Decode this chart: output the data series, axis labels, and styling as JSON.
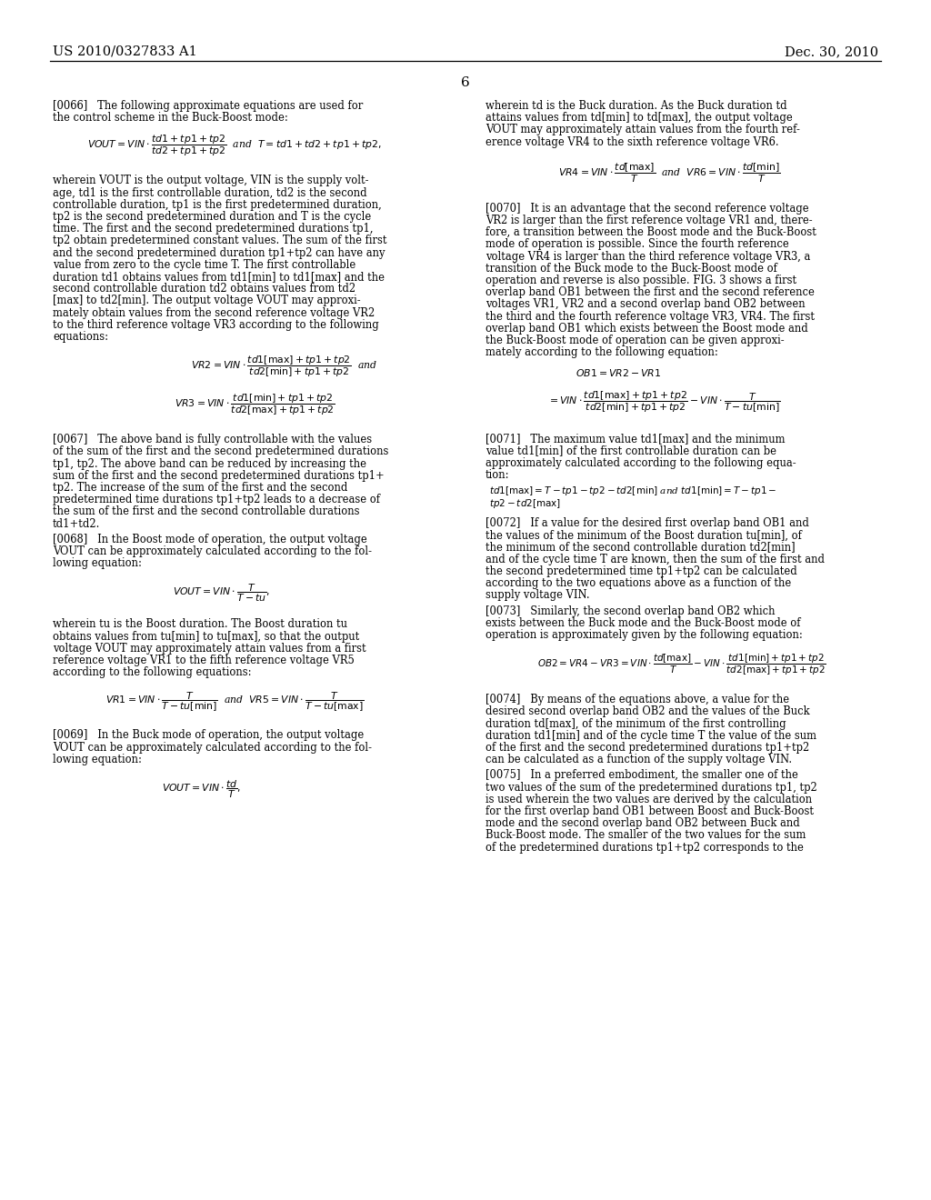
{
  "background": "#ffffff",
  "header_left": "US 2010/0327833 A1",
  "header_right": "Dec. 30, 2010",
  "page_num": "6"
}
